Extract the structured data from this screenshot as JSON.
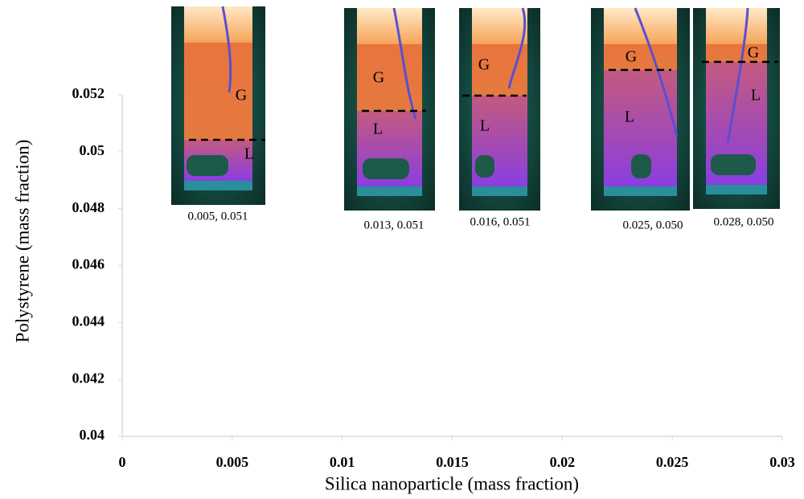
{
  "chart_data": {
    "type": "scatter",
    "x_label": "Silica nanoparticle (mass fraction)",
    "y_label": "Polystyrene (mass fraction)",
    "xlim": [
      0,
      0.03
    ],
    "xticks": [
      0,
      0.005,
      0.01,
      0.015,
      0.02,
      0.025,
      0.03
    ],
    "ylim": [
      0.04,
      0.052
    ],
    "yticks": [
      0.04,
      0.042,
      0.044,
      0.046,
      0.048,
      0.05,
      0.052
    ],
    "insets": [
      {
        "label": "0.005, 0.051",
        "gas": "G",
        "liquid": "L"
      },
      {
        "label": "0.013, 0.051",
        "gas": "G",
        "liquid": "L"
      },
      {
        "label": "0.016, 0.051",
        "gas": "G",
        "liquid": "L"
      },
      {
        "label": "0.025, 0.050",
        "gas": "G",
        "liquid": "L"
      },
      {
        "label": "0.028, 0.050",
        "gas": "G",
        "liquid": "L"
      }
    ]
  }
}
